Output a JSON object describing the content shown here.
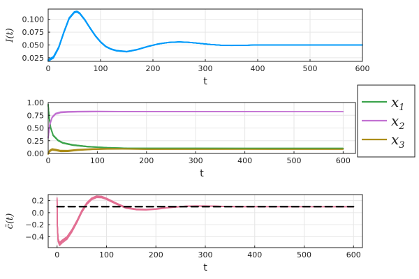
{
  "chart_data": [
    {
      "type": "line",
      "title": "",
      "xlabel": "t",
      "ylabel": "I(t)",
      "xlim": [
        0,
        600
      ],
      "ylim": [
        0.018,
        0.12
      ],
      "xticks": [
        "0",
        "100",
        "200",
        "300",
        "400",
        "500",
        "600"
      ],
      "xtick_values": [
        0,
        100,
        200,
        300,
        400,
        500,
        600
      ],
      "yticks": [
        "0.025",
        "0.050",
        "0.075",
        "0.100"
      ],
      "ytick_values": [
        0.025,
        0.05,
        0.075,
        0.1
      ],
      "grid": true,
      "series": [
        {
          "color": "#009AFA",
          "x": [
            0,
            10,
            20,
            30,
            40,
            50,
            55,
            60,
            70,
            80,
            90,
            100,
            110,
            120,
            130,
            150,
            170,
            190,
            210,
            230,
            250,
            270,
            290,
            310,
            330,
            350,
            380,
            400,
            450,
            500,
            550,
            600
          ],
          "y": [
            0.02,
            0.026,
            0.045,
            0.075,
            0.102,
            0.114,
            0.115,
            0.112,
            0.099,
            0.083,
            0.068,
            0.056,
            0.047,
            0.042,
            0.039,
            0.037,
            0.041,
            0.047,
            0.052,
            0.055,
            0.056,
            0.055,
            0.053,
            0.051,
            0.0495,
            0.049,
            0.0495,
            0.05,
            0.05,
            0.05,
            0.05,
            0.05
          ]
        }
      ]
    },
    {
      "type": "line",
      "title": "",
      "xlabel": "t",
      "ylabel": "",
      "xlim": [
        0,
        625
      ],
      "ylim": [
        0,
        1.0
      ],
      "xticks": [
        "0",
        "100",
        "200",
        "300",
        "400",
        "500",
        "600"
      ],
      "xtick_values": [
        0,
        100,
        200,
        300,
        400,
        500,
        600
      ],
      "yticks": [
        "0.00",
        "0.25",
        "0.50",
        "0.75",
        "1.00"
      ],
      "ytick_values": [
        0,
        0.25,
        0.5,
        0.75,
        1.0
      ],
      "grid": true,
      "legend": {
        "placement": "outside-right",
        "entries": [
          "x1",
          "x2",
          "x3"
        ]
      },
      "series": [
        {
          "name": "x1",
          "subscript": "1",
          "color": "#3DA44D",
          "x": [
            0,
            2,
            5,
            10,
            20,
            30,
            50,
            80,
            120,
            160,
            200,
            250,
            300,
            400,
            500,
            600
          ],
          "y": [
            0.95,
            0.7,
            0.5,
            0.35,
            0.25,
            0.2,
            0.16,
            0.13,
            0.11,
            0.1,
            0.1,
            0.1,
            0.1,
            0.1,
            0.1,
            0.1
          ]
        },
        {
          "name": "x2",
          "subscript": "2",
          "color": "#C271D2",
          "x": [
            0,
            3,
            8,
            15,
            25,
            40,
            60,
            100,
            150,
            200,
            300,
            400,
            500,
            600
          ],
          "y": [
            0.3,
            0.55,
            0.7,
            0.77,
            0.8,
            0.81,
            0.815,
            0.82,
            0.82,
            0.82,
            0.82,
            0.82,
            0.82,
            0.82
          ]
        },
        {
          "name": "x3",
          "subscript": "3",
          "color": "#AC8D18",
          "x": [
            0,
            3,
            8,
            15,
            25,
            40,
            60,
            90,
            120,
            150,
            200,
            300,
            400,
            500,
            600
          ],
          "y": [
            0.0,
            0.05,
            0.08,
            0.07,
            0.05,
            0.05,
            0.07,
            0.085,
            0.09,
            0.09,
            0.085,
            0.085,
            0.085,
            0.085,
            0.085
          ]
        }
      ]
    },
    {
      "type": "line",
      "title": "",
      "xlabel": "t",
      "ylabel": "c̄(t)",
      "xlim": [
        -18,
        618
      ],
      "ylim": [
        -0.58,
        0.3
      ],
      "xticks": [
        "0",
        "100",
        "200",
        "300",
        "400",
        "500",
        "600"
      ],
      "xtick_values": [
        0,
        100,
        200,
        300,
        400,
        500,
        600
      ],
      "yticks": [
        "0.2",
        "0.0",
        "−0.2",
        "−0.4"
      ],
      "ytick_values": [
        0.2,
        0.0,
        -0.2,
        -0.4
      ],
      "grid": true,
      "series": [
        {
          "color": "#E26F93",
          "x": [
            0,
            0.5,
            2,
            5,
            10,
            20,
            30,
            40,
            50,
            60,
            70,
            80,
            90,
            100,
            120,
            140,
            160,
            180,
            200,
            220,
            240,
            260,
            280,
            300,
            330,
            360,
            400,
            500,
            600
          ],
          "y": [
            0.22,
            -0.2,
            -0.45,
            -0.52,
            -0.48,
            -0.42,
            -0.3,
            -0.15,
            0.02,
            0.15,
            0.23,
            0.265,
            0.26,
            0.23,
            0.15,
            0.08,
            0.055,
            0.05,
            0.06,
            0.08,
            0.095,
            0.105,
            0.11,
            0.11,
            0.105,
            0.1,
            0.1,
            0.1,
            0.1
          ]
        },
        {
          "color": "#000000",
          "dashed": true,
          "x": [
            0,
            600
          ],
          "y": [
            0.1,
            0.1
          ]
        }
      ]
    }
  ]
}
